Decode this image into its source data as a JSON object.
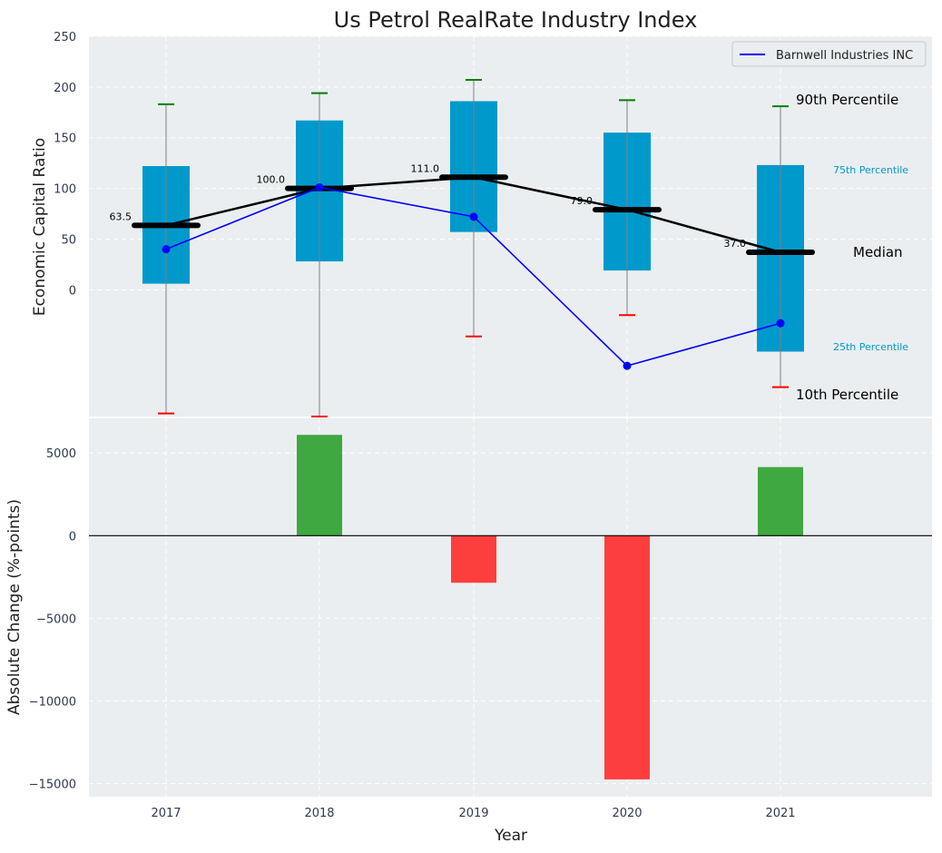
{
  "colors": {
    "plot_bg": "#eaeef0",
    "box": "#0099cc",
    "median": "#000000",
    "company": "#0000ff",
    "p90_cap": "#008000",
    "p10_cap": "#ff0000",
    "whisker": "#808080",
    "positive": "#2ca02c",
    "negative": "#ff2a2a",
    "grid": "#ffffff",
    "pct_label": "#0099cc"
  },
  "chart_data": [
    {
      "type": "box",
      "title": "Us Petrol RealRate Industry Index",
      "ylabel": "Economic Capital Ratio",
      "ylim": [
        -125,
        250
      ],
      "yticks": [
        0,
        50,
        100,
        150,
        200,
        250
      ],
      "ytick_labels": [
        "0",
        "50",
        "100",
        "150",
        "200",
        "250"
      ],
      "categories": [
        "2017",
        "2018",
        "2019",
        "2020",
        "2021"
      ],
      "p10": [
        -122,
        -125,
        -46,
        -25,
        -96
      ],
      "p25": [
        6,
        28,
        57,
        19,
        -61
      ],
      "median": [
        63.5,
        100.0,
        111.0,
        79.0,
        37.0
      ],
      "median_labels": [
        "63.5",
        "100.0",
        "111.0",
        "79.0",
        "37.0"
      ],
      "p75": [
        122,
        167,
        186,
        155,
        123
      ],
      "p90": [
        183,
        194,
        207,
        187,
        181
      ],
      "company": {
        "name": "Barnwell Industries INC",
        "values": [
          40,
          101,
          72,
          -75,
          -33
        ]
      },
      "legend": {
        "label": "Barnwell Industries INC",
        "position": "top-right"
      },
      "annotations": {
        "p90": "90th Percentile",
        "p75": "75th Percentile",
        "median": "Median",
        "p25": "25th Percentile",
        "p10": "10th Percentile"
      }
    },
    {
      "type": "bar",
      "xlabel": "Year",
      "ylabel": "Absolute Change (%-points)",
      "categories": [
        "2017",
        "2018",
        "2019",
        "2020",
        "2021"
      ],
      "values": [
        0,
        6100,
        -2850,
        -14750,
        4150
      ],
      "ylim": [
        -15800,
        7100
      ],
      "yticks": [
        5000,
        0,
        -5000,
        -10000,
        -15000
      ],
      "ytick_labels": [
        "5000",
        "0",
        "−5000",
        "−10000",
        "−15000"
      ]
    }
  ]
}
